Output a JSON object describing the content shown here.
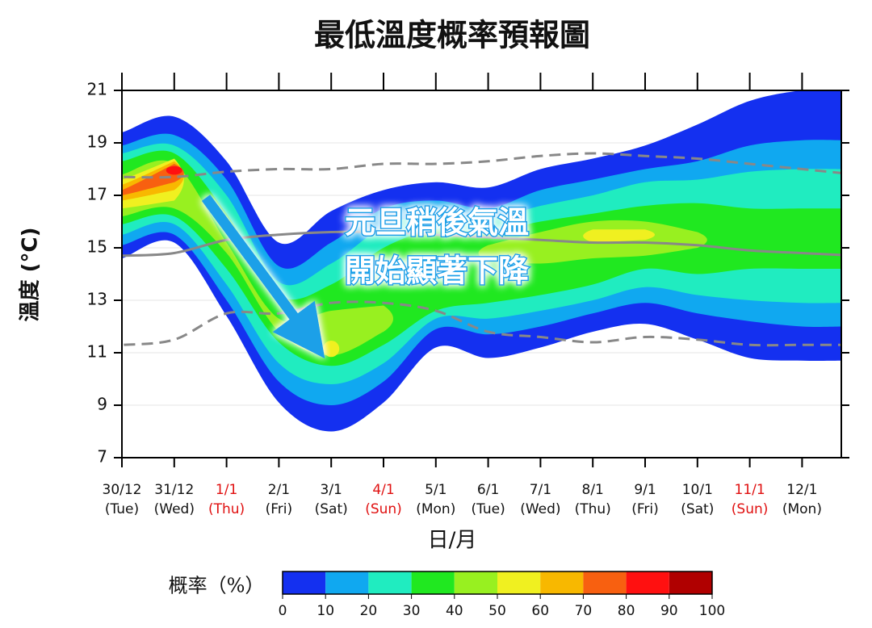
{
  "chart_data": {
    "type": "probability-fan",
    "title": "最低溫度概率預報圖",
    "y_label": "溫度 (°C)",
    "x_label": "日/月",
    "categories": [
      "30/12",
      "31/12",
      "1/1",
      "2/1",
      "3/1",
      "4/1",
      "5/1",
      "6/1",
      "7/1",
      "8/1",
      "9/1",
      "10/1",
      "11/1",
      "12/1"
    ],
    "weekdays": [
      "(Tue)",
      "(Wed)",
      "(Thu)",
      "(Fri)",
      "(Sat)",
      "(Sun)",
      "(Mon)",
      "(Tue)",
      "(Wed)",
      "(Thu)",
      "(Fri)",
      "(Sat)",
      "(Sun)",
      "(Mon)"
    ],
    "highlighted": [
      2,
      5,
      12
    ],
    "highlight_color": "#e01010",
    "ylim": [
      7,
      21
    ],
    "yticks": [
      7,
      9,
      11,
      13,
      15,
      17,
      19,
      21
    ],
    "grid": true,
    "annotation": [
      "元旦稍後氣溫",
      "開始顯著下降"
    ],
    "bands": [
      {
        "color": "#1430f0",
        "upper": [
          19.4,
          20.0,
          18.3,
          15.2,
          16.4,
          17.2,
          17.5,
          17.3,
          18.0,
          18.4,
          18.9,
          19.7,
          20.6,
          21
        ],
        "lower": [
          14.6,
          15.2,
          12.4,
          9.1,
          8.0,
          9.1,
          11.2,
          10.8,
          11.2,
          11.8,
          12.1,
          11.5,
          10.8,
          10.7
        ]
      },
      {
        "color": "#10a8f0",
        "upper": [
          18.9,
          19.3,
          17.6,
          14.3,
          15.2,
          16.5,
          16.8,
          16.5,
          17.2,
          17.6,
          18.0,
          18.3,
          18.9,
          19.1
        ],
        "lower": [
          15.1,
          15.5,
          13.0,
          9.9,
          9.0,
          9.9,
          11.9,
          11.7,
          12.0,
          12.5,
          12.9,
          12.5,
          12.2,
          12.0
        ]
      },
      {
        "color": "#20ecc0",
        "upper": [
          18.6,
          18.9,
          17.0,
          13.7,
          14.4,
          15.8,
          16.3,
          16.1,
          16.6,
          17.0,
          17.5,
          17.6,
          17.9,
          18.0
        ],
        "lower": [
          15.5,
          15.9,
          13.6,
          10.6,
          9.8,
          10.6,
          12.3,
          12.3,
          12.6,
          13.0,
          13.5,
          13.2,
          13.0,
          12.9
        ]
      },
      {
        "color": "#20e820",
        "upper": [
          18.3,
          18.6,
          16.3,
          13.2,
          13.6,
          15.0,
          15.7,
          15.6,
          16.0,
          16.3,
          16.6,
          16.7,
          16.5,
          16.5
        ],
        "lower": [
          15.9,
          16.2,
          14.2,
          11.4,
          10.5,
          11.3,
          12.6,
          12.9,
          13.2,
          13.6,
          14.2,
          14.0,
          14.2,
          14.2
        ]
      },
      {
        "color": "#98f020",
        "upper": [
          17.8,
          18.2,
          15.2,
          12.3,
          12.6,
          12.8,
          null,
          15.1,
          15.6,
          16.0,
          16.0,
          15.6,
          null,
          null
        ],
        "lower": [
          16.2,
          16.5,
          14.8,
          11.8,
          10.9,
          11.8,
          null,
          14.5,
          14.4,
          14.6,
          14.7,
          15.0,
          null,
          null
        ]
      },
      {
        "color": "#f0f020",
        "upper": [
          17.6,
          18.4,
          null,
          null,
          11.4,
          null,
          null,
          null,
          null,
          15.7,
          15.7,
          null,
          null,
          null
        ],
        "lower": [
          16.5,
          16.8,
          null,
          null,
          10.9,
          null,
          null,
          null,
          null,
          15.2,
          15.3,
          null,
          null,
          null
        ]
      },
      {
        "color": "#f8b800",
        "upper": [
          17.4,
          18.3,
          null,
          null,
          null,
          null,
          null,
          null,
          null,
          null,
          null,
          null,
          null,
          null
        ],
        "lower": [
          16.8,
          17.2,
          null,
          null,
          null,
          null,
          null,
          null,
          null,
          null,
          null,
          null,
          null,
          null
        ]
      },
      {
        "color": "#f86010",
        "upper": [
          17.2,
          18.2,
          null,
          null,
          null,
          null,
          null,
          null,
          null,
          null,
          null,
          null,
          null,
          null
        ],
        "lower": [
          17.0,
          17.5,
          null,
          null,
          null,
          null,
          null,
          null,
          null,
          null,
          null,
          null,
          null,
          null
        ]
      },
      {
        "color": "#ff1010",
        "upper": [
          null,
          18.05,
          null,
          null,
          null,
          null,
          null,
          null,
          null,
          null,
          null,
          null,
          null,
          null
        ],
        "lower": [
          null,
          17.85,
          null,
          null,
          null,
          null,
          null,
          null,
          null,
          null,
          null,
          null,
          null,
          null
        ]
      }
    ],
    "lines": [
      {
        "color": "#888888",
        "dash": true,
        "values": [
          17.7,
          17.7,
          17.9,
          18.0,
          18.0,
          18.2,
          18.2,
          18.3,
          18.5,
          18.6,
          18.5,
          18.4,
          18.2,
          18.0
        ]
      },
      {
        "color": "#888888",
        "dash": false,
        "values": [
          14.7,
          14.8,
          15.3,
          15.5,
          15.6,
          15.6,
          15.5,
          15.4,
          15.3,
          15.2,
          15.2,
          15.1,
          14.9,
          14.8
        ]
      },
      {
        "color": "#888888",
        "dash": true,
        "values": [
          11.3,
          11.5,
          12.5,
          12.5,
          12.9,
          12.9,
          12.6,
          11.8,
          11.6,
          11.4,
          11.6,
          11.5,
          11.3,
          11.3
        ]
      }
    ],
    "colorbar": {
      "label": "概率（%）",
      "ticks": [
        0,
        10,
        20,
        30,
        40,
        50,
        60,
        70,
        80,
        90,
        100
      ],
      "colors": [
        "#1430f0",
        "#10a8f0",
        "#20ecc0",
        "#20e820",
        "#98f020",
        "#f0f020",
        "#f8b800",
        "#f86010",
        "#ff1010",
        "#b00000"
      ]
    }
  }
}
